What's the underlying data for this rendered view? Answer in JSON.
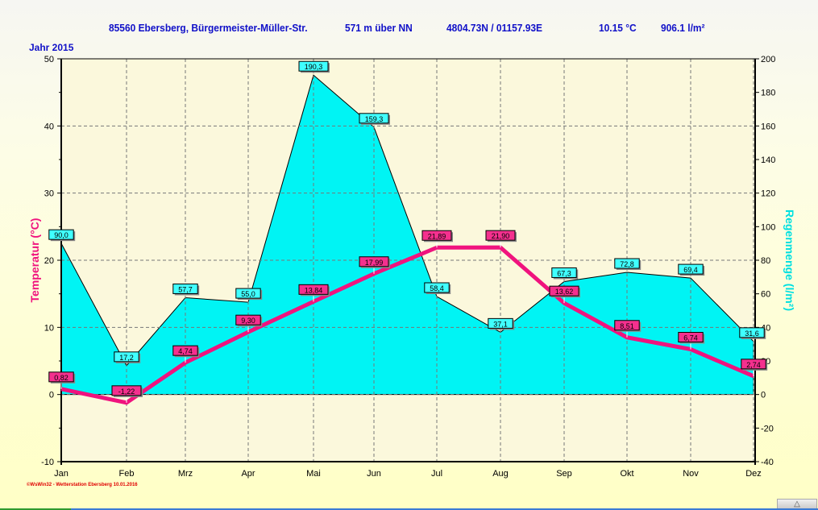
{
  "header": {
    "location": "85560 Ebersberg, Bürgermeister-Müller-Str.",
    "altitude": "571 m über NN",
    "coords": "4804.73N / 01157.93E",
    "avg_temp": "10.15 °C",
    "total_rain": "906.1 l/m²"
  },
  "year_label": "Jahr  2015",
  "footer": "©WsWin32 - Wetterstation Ebersberg  10.01.2016",
  "chart_data": {
    "type": "line",
    "title": "85560 Ebersberg, Bürgermeister-Müller-Str.",
    "categories": [
      "Jan",
      "Feb",
      "Mrz",
      "Apr",
      "Mai",
      "Jun",
      "Jul",
      "Aug",
      "Sep",
      "Okt",
      "Nov",
      "Dez"
    ],
    "ylabel": "Temperatur  (°C)",
    "y2label": "Regenmenge  (l/m²)",
    "ylim": [
      -10,
      50
    ],
    "y2lim": [
      -40,
      200
    ],
    "yticks": [
      "-10",
      "0",
      "10",
      "20",
      "30",
      "40",
      "50"
    ],
    "y2ticks": [
      "-40",
      "-20",
      "0",
      "20",
      "40",
      "60",
      "80",
      "100",
      "120",
      "140",
      "160",
      "180",
      "200"
    ],
    "grid": true,
    "series": [
      {
        "name": "Regenmenge",
        "type": "area",
        "axis": "right",
        "color": "#00f4f4",
        "values": [
          90.0,
          17.2,
          57.7,
          55.0,
          190.3,
          159.3,
          58.4,
          37.1,
          67.3,
          72.8,
          69.4,
          31.6
        ],
        "labels": [
          "90,0",
          "17,2",
          "57,7",
          "55,0",
          "190,3",
          "159,3",
          "58,4",
          "37,1",
          "67,3",
          "72,8",
          "69,4",
          "31,6"
        ]
      },
      {
        "name": "Temperatur",
        "type": "line",
        "axis": "left",
        "color": "#f0137e",
        "values": [
          0.82,
          -1.22,
          4.74,
          9.3,
          13.84,
          17.99,
          21.89,
          21.9,
          13.62,
          8.51,
          6.74,
          2.74
        ],
        "labels": [
          "0,82",
          "-1,22",
          "4,74",
          "9,30",
          "13,84",
          "17,99",
          "21,89",
          "21,90",
          "13,62",
          "8,51",
          "6,74",
          "2,74"
        ]
      }
    ]
  }
}
